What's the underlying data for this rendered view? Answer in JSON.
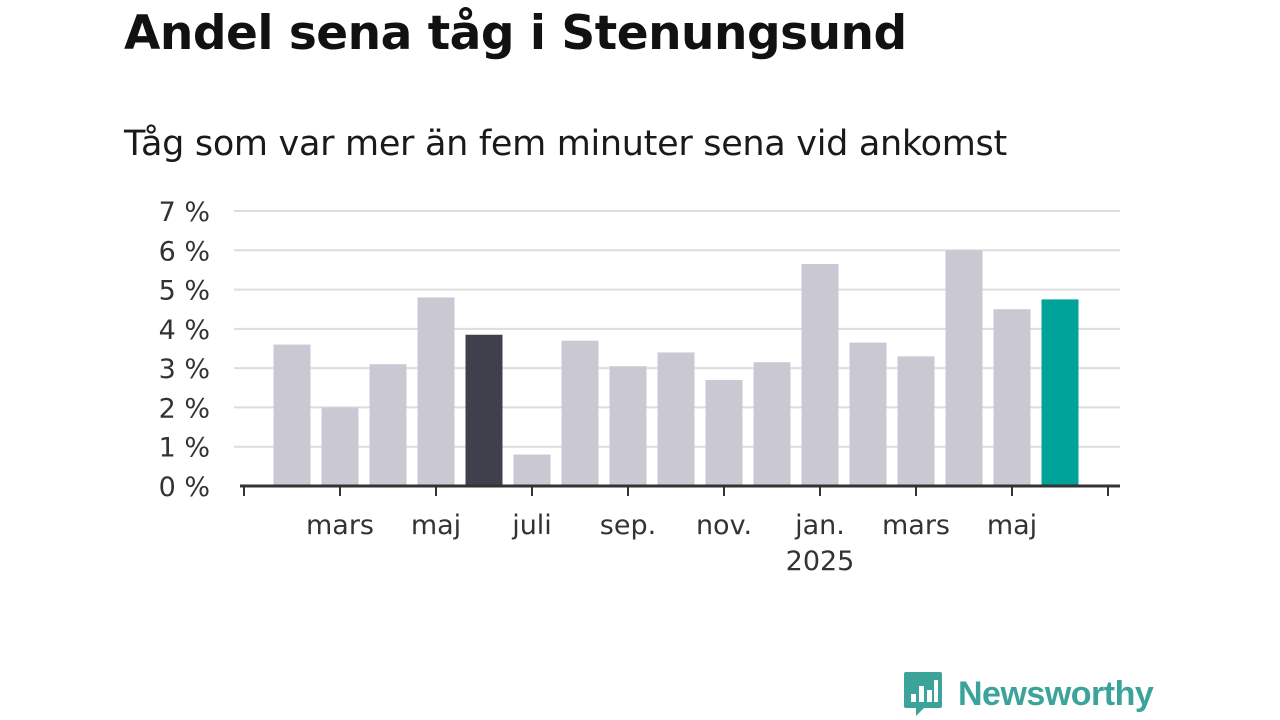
{
  "title": "Andel sena tåg i Stenungsund",
  "subtitle": "Tåg som var mer än fem minuter sena vid ankomst",
  "brand": {
    "name": "Newsworthy",
    "logo_icon": "bar-chart-speech-bubble-icon"
  },
  "colors": {
    "default_bar": "#c9c8d3",
    "highlight_dark": "#403f4c",
    "highlight_accent": "#00a39a",
    "grid": "#dddddd",
    "axis": "#333333"
  },
  "chart_data": {
    "type": "bar",
    "title": "Andel sena tåg i Stenungsund",
    "subtitle": "Tåg som var mer än fem minuter sena vid ankomst",
    "xlabel": "",
    "ylabel": "",
    "ylim": [
      0,
      7
    ],
    "yticks": [
      "0 %",
      "1 %",
      "2 %",
      "3 %",
      "4 %",
      "5 %",
      "6 %",
      "7 %"
    ],
    "grid": true,
    "x": [
      "2024-02",
      "2024-03",
      "2024-04",
      "2024-05",
      "2024-06",
      "2024-07",
      "2024-08",
      "2024-09",
      "2024-10",
      "2024-11",
      "2024-12",
      "2025-01",
      "2025-02",
      "2025-03",
      "2025-04",
      "2025-05",
      "2025-06"
    ],
    "values": [
      3.6,
      2.0,
      3.1,
      4.8,
      3.85,
      0.8,
      3.7,
      3.05,
      3.4,
      2.7,
      3.15,
      5.65,
      3.65,
      3.3,
      6.0,
      4.5,
      4.75
    ],
    "highlights": {
      "4": "dark",
      "16": "accent"
    },
    "xtick_labels": [
      {
        "label": "mars",
        "x": "2024-03"
      },
      {
        "label": "maj",
        "x": "2024-05"
      },
      {
        "label": "juli",
        "x": "2024-07"
      },
      {
        "label": "sep.",
        "x": "2024-09"
      },
      {
        "label": "nov.",
        "x": "2024-11"
      },
      {
        "label": "jan.",
        "x": "2025-01",
        "year": "2025"
      },
      {
        "label": "mars",
        "x": "2025-03"
      },
      {
        "label": "maj",
        "x": "2025-05"
      }
    ]
  }
}
